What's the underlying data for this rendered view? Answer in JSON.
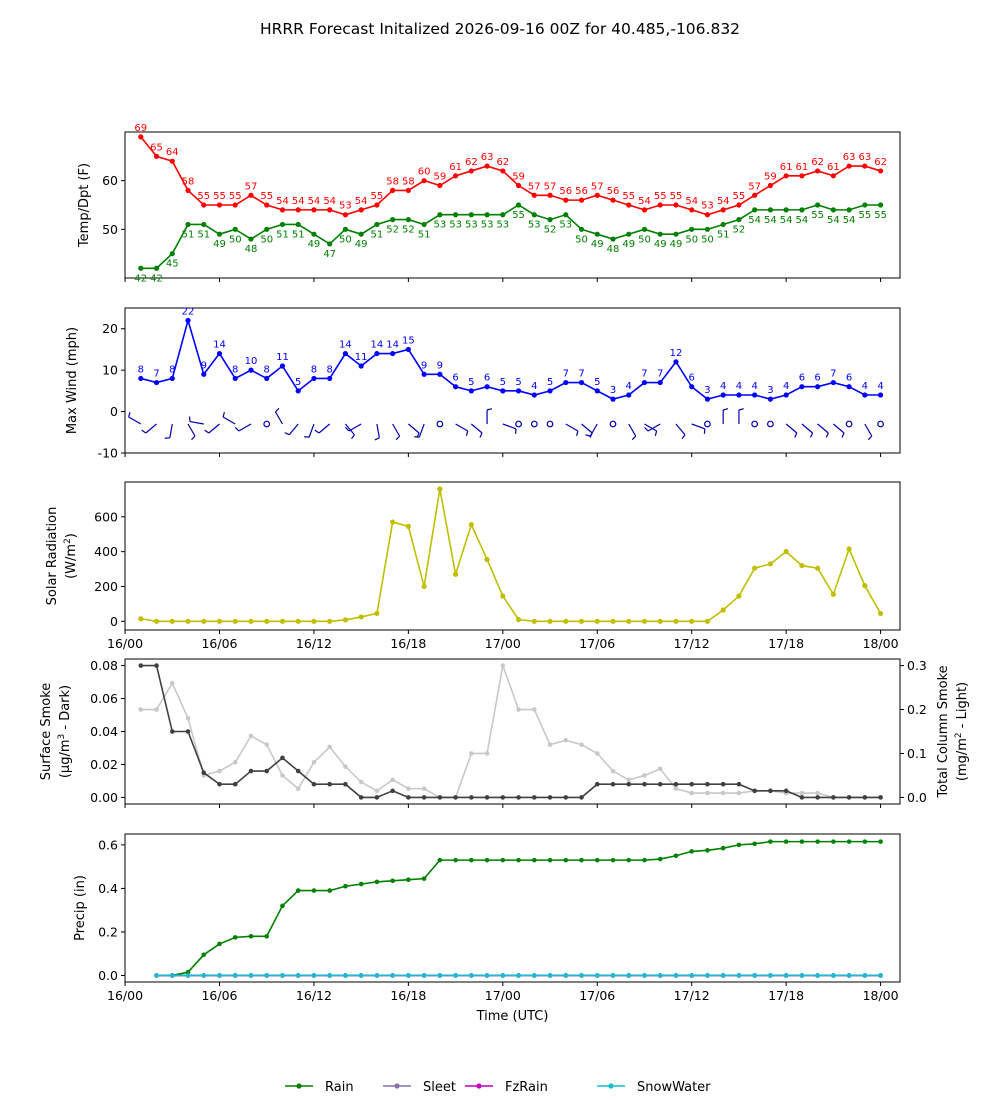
{
  "title": "HRRR Forecast Initalized 2026-09-16 00Z for 40.485,-106.832",
  "xlabel": "Time (UTC)",
  "x_tick_labels": [
    "16/00",
    "16/06",
    "16/12",
    "16/18",
    "17/00",
    "17/06",
    "17/12",
    "17/18",
    "18/00"
  ],
  "legend": {
    "placement": "bottom-center",
    "entries": [
      {
        "name": "Rain",
        "color": "#008000"
      },
      {
        "name": "Sleet",
        "color": "#8a6fa8"
      },
      {
        "name": "FzRain",
        "color": "#c000c0"
      },
      {
        "name": "SnowWater",
        "color": "#17becf"
      }
    ]
  },
  "chart_data": [
    {
      "type": "line",
      "panel": "temp",
      "ylabel": "Temp/Dpt (F)",
      "ylim": [
        40,
        70
      ],
      "yticks": [
        50,
        60
      ],
      "x_hours": [
        1,
        2,
        3,
        4,
        5,
        6,
        7,
        8,
        9,
        10,
        11,
        12,
        13,
        14,
        15,
        16,
        17,
        18,
        19,
        20,
        21,
        22,
        23,
        24,
        25,
        26,
        27,
        28,
        29,
        30,
        31,
        32,
        33,
        34,
        35,
        36,
        37,
        38,
        39,
        40,
        41,
        42,
        43,
        44,
        45,
        46,
        47,
        48
      ],
      "series": [
        {
          "name": "Temp",
          "color": "#ff0000",
          "values": [
            69,
            65,
            64,
            58,
            55,
            55,
            55,
            57,
            55,
            54,
            54,
            54,
            54,
            53,
            54,
            55,
            58,
            58,
            60,
            59,
            61,
            62,
            63,
            62,
            59,
            57,
            57,
            56,
            56,
            57,
            56,
            55,
            54,
            55,
            55,
            54,
            53,
            54,
            55,
            57,
            59,
            61,
            61,
            62,
            61,
            63,
            63,
            62
          ]
        },
        {
          "name": "Dewpoint",
          "color": "#008000",
          "values": [
            42,
            42,
            45,
            51,
            51,
            49,
            50,
            48,
            50,
            51,
            51,
            49,
            47,
            50,
            49,
            51,
            52,
            52,
            51,
            53,
            53,
            53,
            53,
            53,
            55,
            53,
            52,
            53,
            50,
            49,
            48,
            49,
            50,
            49,
            49,
            50,
            50,
            51,
            52,
            54,
            54,
            54,
            54,
            55,
            54,
            54,
            55,
            55
          ]
        }
      ]
    },
    {
      "type": "line",
      "panel": "wind",
      "ylabel": "Max Wind (mph)",
      "ylim": [
        -10,
        25
      ],
      "yticks": [
        -10,
        0,
        10,
        20
      ],
      "x_hours": [
        1,
        2,
        3,
        4,
        5,
        6,
        7,
        8,
        9,
        10,
        11,
        12,
        13,
        14,
        15,
        16,
        17,
        18,
        19,
        20,
        21,
        22,
        23,
        24,
        25,
        26,
        27,
        28,
        29,
        30,
        31,
        32,
        33,
        34,
        35,
        36,
        37,
        38,
        39,
        40,
        41,
        42,
        43,
        44,
        45,
        46,
        47,
        48
      ],
      "series": [
        {
          "name": "Max Wind",
          "color": "#0000ff",
          "values": [
            8,
            7,
            8,
            22,
            9,
            14,
            8,
            10,
            8,
            11,
            5,
            8,
            8,
            14,
            11,
            14,
            14,
            15,
            9,
            9,
            6,
            5,
            6,
            5,
            5,
            4,
            5,
            7,
            7,
            5,
            3,
            4,
            7,
            7,
            12,
            6,
            3,
            4,
            4,
            4,
            3,
            4,
            6,
            6,
            7,
            6,
            4,
            4
          ]
        }
      ],
      "wind_barbs": {
        "y_value": -3,
        "directions_deg": [
          300,
          230,
          190,
          150,
          280,
          230,
          300,
          240,
          0,
          330,
          220,
          200,
          230,
          140,
          240,
          170,
          150,
          130,
          200,
          0,
          120,
          130,
          0,
          110,
          0,
          0,
          0,
          120,
          130,
          210,
          0,
          150,
          120,
          240,
          140,
          110,
          0,
          0,
          0,
          0,
          0,
          130,
          130,
          130,
          130,
          0,
          150,
          0
        ],
        "calm": [
          false,
          false,
          false,
          false,
          false,
          false,
          false,
          false,
          true,
          false,
          false,
          false,
          false,
          false,
          false,
          false,
          false,
          false,
          false,
          true,
          false,
          false,
          false,
          false,
          true,
          true,
          true,
          false,
          false,
          false,
          true,
          false,
          false,
          false,
          false,
          false,
          true,
          false,
          false,
          true,
          true,
          false,
          false,
          false,
          false,
          true,
          false,
          true
        ]
      }
    },
    {
      "type": "line",
      "panel": "solar",
      "ylabel": "Solar Radiation",
      "ylabel_unit": "(W/m",
      "ylabel_unit_sup": "2",
      "ylabel_unit_end": ")",
      "ylim": [
        -50,
        800
      ],
      "yticks": [
        0,
        200,
        400,
        600
      ],
      "x_hours": [
        1,
        2,
        3,
        4,
        5,
        6,
        7,
        8,
        9,
        10,
        11,
        12,
        13,
        14,
        15,
        16,
        17,
        18,
        19,
        20,
        21,
        22,
        23,
        24,
        25,
        26,
        27,
        28,
        29,
        30,
        31,
        32,
        33,
        34,
        35,
        36,
        37,
        38,
        39,
        40,
        41,
        42,
        43,
        44,
        45,
        46,
        47,
        48
      ],
      "series": [
        {
          "name": "Solar",
          "color": "#bfbf00",
          "values": [
            15,
            0,
            0,
            0,
            0,
            0,
            0,
            0,
            0,
            0,
            0,
            0,
            0,
            8,
            25,
            45,
            570,
            545,
            200,
            760,
            270,
            555,
            355,
            145,
            10,
            0,
            0,
            0,
            0,
            0,
            0,
            0,
            0,
            0,
            0,
            0,
            0,
            65,
            145,
            305,
            330,
            400,
            320,
            305,
            155,
            415,
            205,
            45
          ]
        }
      ]
    },
    {
      "type": "line",
      "panel": "smoke",
      "ylabel": "Surface Smoke",
      "ylabel_unit": "(μg/m",
      "ylabel_unit_sup": "3",
      "ylabel_unit_end": " - Dark)",
      "ylabel_right": "Total Column Smoke",
      "ylabel_right_unit": "(mg/m",
      "ylabel_right_unit_sup": "2",
      "ylabel_right_unit_end": " - Light)",
      "ylim": [
        -0.004,
        0.084
      ],
      "yticks": [
        "0.00",
        "0.02",
        "0.04",
        "0.06",
        "0.08"
      ],
      "ylim_right": [
        -0.015,
        0.315
      ],
      "yticks_right": [
        "0.0",
        "0.1",
        "0.2",
        "0.3"
      ],
      "x_hours": [
        1,
        2,
        3,
        4,
        5,
        6,
        7,
        8,
        9,
        10,
        11,
        12,
        13,
        14,
        15,
        16,
        17,
        18,
        19,
        20,
        21,
        22,
        23,
        24,
        25,
        26,
        27,
        28,
        29,
        30,
        31,
        32,
        33,
        34,
        35,
        36,
        37,
        38,
        39,
        40,
        41,
        42,
        43,
        44,
        45,
        46,
        47,
        48
      ],
      "series": [
        {
          "name": "Surface Smoke",
          "color": "#404040",
          "axis": "left",
          "values": [
            0.08,
            0.08,
            0.04,
            0.04,
            0.015,
            0.008,
            0.008,
            0.016,
            0.016,
            0.024,
            0.016,
            0.008,
            0.008,
            0.008,
            0.0,
            0.0,
            0.004,
            0.0,
            0.0,
            0.0,
            0.0,
            0.0,
            0.0,
            0.0,
            0.0,
            0.0,
            0.0,
            0.0,
            0.0,
            0.008,
            0.008,
            0.008,
            0.008,
            0.008,
            0.008,
            0.008,
            0.008,
            0.008,
            0.008,
            0.004,
            0.004,
            0.004,
            0.0,
            0.0,
            0.0,
            0.0,
            0.0,
            0.0
          ]
        },
        {
          "name": "Total Column Smoke",
          "color": "#c8c8c8",
          "axis": "right",
          "values": [
            0.2,
            0.2,
            0.26,
            0.18,
            0.05,
            0.06,
            0.08,
            0.14,
            0.12,
            0.05,
            0.02,
            0.08,
            0.115,
            0.07,
            0.035,
            0.015,
            0.04,
            0.02,
            0.02,
            0.0,
            0.0,
            0.1,
            0.1,
            0.3,
            0.2,
            0.2,
            0.12,
            0.13,
            0.12,
            0.1,
            0.06,
            0.04,
            0.05,
            0.065,
            0.02,
            0.01,
            0.01,
            0.01,
            0.01,
            0.015,
            0.015,
            0.01,
            0.01,
            0.01,
            0.0,
            0.0,
            0.0,
            0.0
          ]
        }
      ]
    },
    {
      "type": "line",
      "panel": "precip",
      "ylabel": "Precip (in)",
      "ylim": [
        -0.03,
        0.65
      ],
      "yticks": [
        "0.0",
        "0.2",
        "0.4",
        "0.6"
      ],
      "x_hours": [
        2,
        3,
        4,
        5,
        6,
        7,
        8,
        9,
        10,
        11,
        12,
        13,
        14,
        15,
        16,
        17,
        18,
        19,
        20,
        21,
        22,
        23,
        24,
        25,
        26,
        27,
        28,
        29,
        30,
        31,
        32,
        33,
        34,
        35,
        36,
        37,
        38,
        39,
        40,
        41,
        42,
        43,
        44,
        45,
        46,
        47,
        48
      ],
      "series": [
        {
          "name": "Rain",
          "color": "#008000",
          "values": [
            0.0,
            0.0,
            0.015,
            0.095,
            0.145,
            0.175,
            0.18,
            0.18,
            0.32,
            0.39,
            0.39,
            0.39,
            0.41,
            0.42,
            0.43,
            0.435,
            0.44,
            0.445,
            0.53,
            0.53,
            0.53,
            0.53,
            0.53,
            0.53,
            0.53,
            0.53,
            0.53,
            0.53,
            0.53,
            0.53,
            0.53,
            0.53,
            0.535,
            0.55,
            0.57,
            0.575,
            0.585,
            0.6,
            0.605,
            0.615,
            0.615,
            0.615,
            0.615,
            0.615,
            0.615,
            0.615,
            0.615
          ]
        },
        {
          "name": "Sleet",
          "color": "#8a6fa8",
          "values": [
            0,
            0,
            0,
            0,
            0,
            0,
            0,
            0,
            0,
            0,
            0,
            0,
            0,
            0,
            0,
            0,
            0,
            0,
            0,
            0,
            0,
            0,
            0,
            0,
            0,
            0,
            0,
            0,
            0,
            0,
            0,
            0,
            0,
            0,
            0,
            0,
            0,
            0,
            0,
            0,
            0,
            0,
            0,
            0,
            0,
            0,
            0
          ]
        },
        {
          "name": "FzRain",
          "color": "#c000c0",
          "values": [
            0,
            0,
            0,
            0,
            0,
            0,
            0,
            0,
            0,
            0,
            0,
            0,
            0,
            0,
            0,
            0,
            0,
            0,
            0,
            0,
            0,
            0,
            0,
            0,
            0,
            0,
            0,
            0,
            0,
            0,
            0,
            0,
            0,
            0,
            0,
            0,
            0,
            0,
            0,
            0,
            0,
            0,
            0,
            0,
            0,
            0,
            0
          ]
        },
        {
          "name": "SnowWater",
          "color": "#17becf",
          "values": [
            0,
            0,
            0,
            0,
            0,
            0,
            0,
            0,
            0,
            0,
            0,
            0,
            0,
            0,
            0,
            0,
            0,
            0,
            0,
            0,
            0,
            0,
            0,
            0,
            0,
            0,
            0,
            0,
            0,
            0,
            0,
            0,
            0,
            0,
            0,
            0,
            0,
            0,
            0,
            0,
            0,
            0,
            0,
            0,
            0,
            0,
            0
          ]
        }
      ]
    }
  ]
}
